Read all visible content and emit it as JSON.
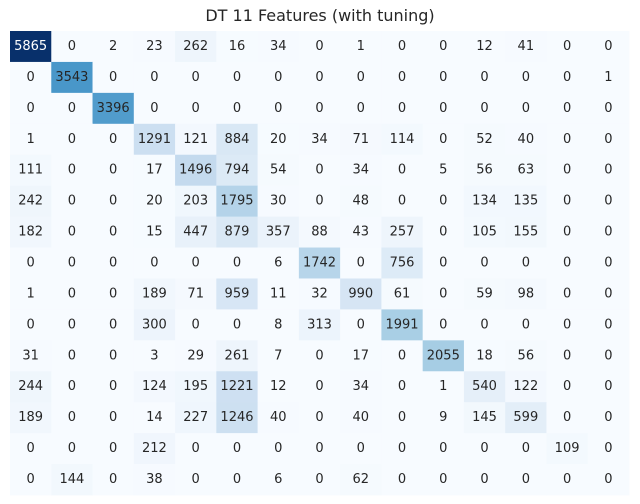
{
  "chart_data": {
    "type": "heatmap",
    "title": "DT 11 Features (with tuning)",
    "colormap": "Blues",
    "colorbar": false,
    "grid": false,
    "matrix": [
      [
        5865,
        0,
        2,
        23,
        262,
        16,
        34,
        0,
        1,
        0,
        0,
        12,
        41,
        0,
        0
      ],
      [
        0,
        3543,
        0,
        0,
        0,
        0,
        0,
        0,
        0,
        0,
        0,
        0,
        0,
        0,
        1
      ],
      [
        0,
        0,
        3396,
        0,
        0,
        0,
        0,
        0,
        0,
        0,
        0,
        0,
        0,
        0,
        0
      ],
      [
        1,
        0,
        0,
        1291,
        121,
        884,
        20,
        34,
        71,
        114,
        0,
        52,
        40,
        0,
        0
      ],
      [
        111,
        0,
        0,
        17,
        1496,
        794,
        54,
        0,
        34,
        0,
        5,
        56,
        63,
        0,
        0
      ],
      [
        242,
        0,
        0,
        20,
        203,
        1795,
        30,
        0,
        48,
        0,
        0,
        134,
        135,
        0,
        0
      ],
      [
        182,
        0,
        0,
        15,
        447,
        879,
        357,
        88,
        43,
        257,
        0,
        105,
        155,
        0,
        0
      ],
      [
        0,
        0,
        0,
        0,
        0,
        0,
        6,
        1742,
        0,
        756,
        0,
        0,
        0,
        0,
        0
      ],
      [
        1,
        0,
        0,
        189,
        71,
        959,
        11,
        32,
        990,
        61,
        0,
        59,
        98,
        0,
        0
      ],
      [
        0,
        0,
        0,
        300,
        0,
        0,
        8,
        313,
        0,
        1991,
        0,
        0,
        0,
        0,
        0
      ],
      [
        31,
        0,
        0,
        3,
        29,
        261,
        7,
        0,
        17,
        0,
        2055,
        18,
        56,
        0,
        0
      ],
      [
        244,
        0,
        0,
        124,
        195,
        1221,
        12,
        0,
        34,
        0,
        1,
        540,
        122,
        0,
        0
      ],
      [
        189,
        0,
        0,
        14,
        227,
        1246,
        40,
        0,
        40,
        0,
        9,
        145,
        599,
        0,
        0
      ],
      [
        0,
        0,
        0,
        212,
        0,
        0,
        0,
        0,
        0,
        0,
        0,
        0,
        0,
        109,
        0
      ],
      [
        0,
        144,
        0,
        38,
        0,
        0,
        6,
        0,
        62,
        0,
        0,
        0,
        0,
        0,
        0
      ]
    ]
  }
}
